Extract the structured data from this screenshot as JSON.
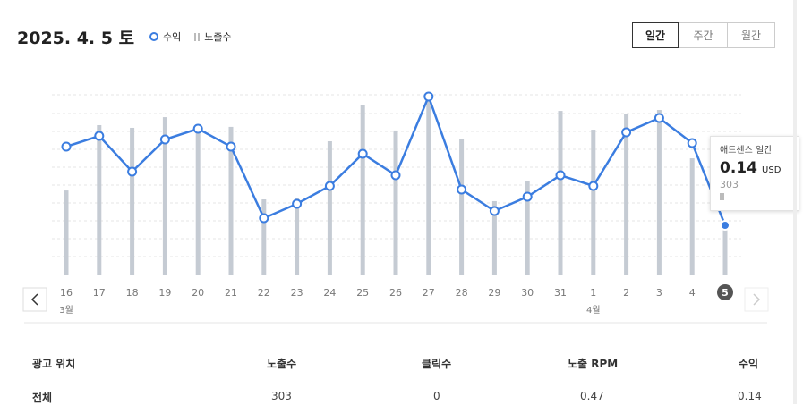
{
  "header": {
    "title": "2025. 4. 5 토",
    "period_buttons": [
      "일간",
      "주간",
      "월간"
    ]
  },
  "chart_data": {
    "type": "combo",
    "categories": [
      "16",
      "17",
      "18",
      "19",
      "20",
      "21",
      "22",
      "23",
      "24",
      "25",
      "26",
      "27",
      "28",
      "29",
      "30",
      "31",
      "1",
      "2",
      "3",
      "4",
      "5"
    ],
    "month_labels": [
      "3월",
      null,
      null,
      null,
      null,
      null,
      null,
      null,
      null,
      null,
      null,
      null,
      null,
      null,
      null,
      null,
      "4월",
      null,
      null,
      null,
      null
    ],
    "series": [
      {
        "name": "수익",
        "kind": "line",
        "color": "#3b7de0",
        "values": [
          0.36,
          0.39,
          0.29,
          0.38,
          0.41,
          0.36,
          0.16,
          0.2,
          0.25,
          0.34,
          0.28,
          0.5,
          0.24,
          0.18,
          0.22,
          0.28,
          0.25,
          0.4,
          0.44,
          0.37,
          0.14
        ]
      },
      {
        "name": "노출수",
        "kind": "bar",
        "color": "#c5cbd3",
        "values": [
          543,
          961,
          944,
          1012,
          961,
          950,
          486,
          492,
          858,
          1092,
          927,
          1144,
          875,
          475,
          601,
          1052,
          932,
          1035,
          1058,
          749,
          303
        ]
      }
    ],
    "tooltip": {
      "title": "애드센스 일간",
      "unit": "USD"
    }
  },
  "table": {
    "headers": [
      "광고 위치",
      "노출수",
      "클릭수",
      "노출 RPM",
      "수익"
    ],
    "rows": [
      [
        "전체",
        "303",
        "0",
        "0.47",
        "0.14"
      ]
    ]
  }
}
